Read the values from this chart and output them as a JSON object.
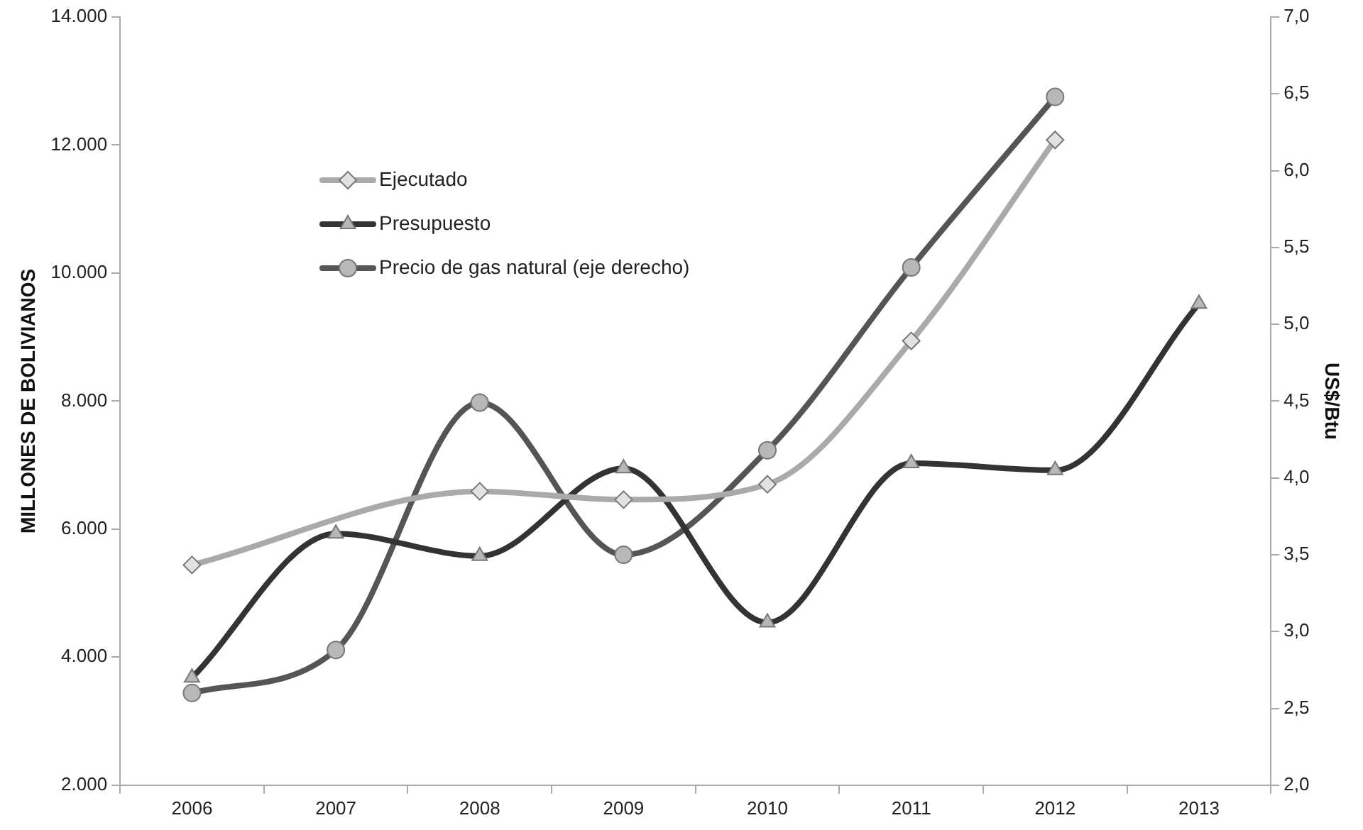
{
  "chart_data": {
    "type": "line",
    "ylabel": "MILLONES DE BOLIVIANOS",
    "y2label": "US$/Btu",
    "categories": [
      "2006",
      "2007",
      "2008",
      "2009",
      "2010",
      "2011",
      "2012",
      "2013"
    ],
    "series": [
      {
        "name": "Ejecutado",
        "color": "#aaaaaa",
        "marker": "diamond",
        "values": [
          5440,
          null,
          6590,
          6460,
          6700,
          8940,
          12080,
          null
        ]
      },
      {
        "name": "Presupuesto",
        "color": "#333333",
        "marker": "triangle",
        "values": [
          3680,
          5930,
          5580,
          6950,
          4540,
          7030,
          6920,
          9520
        ]
      },
      {
        "name": "Precio de gas natural (eje derecho)",
        "color": "#555555",
        "marker": "circle",
        "axis": "y2",
        "values": [
          2.6,
          2.88,
          4.49,
          3.5,
          4.18,
          5.37,
          6.48,
          null
        ]
      }
    ],
    "ylim": [
      2000,
      14000
    ],
    "yticks": [
      {
        "value": 2000,
        "label": "2.000"
      },
      {
        "value": 4000,
        "label": "4.000"
      },
      {
        "value": 6000,
        "label": "6.000"
      },
      {
        "value": 8000,
        "label": "8.000"
      },
      {
        "value": 10000,
        "label": "10.000"
      },
      {
        "value": 12000,
        "label": "12.000"
      },
      {
        "value": 14000,
        "label": "14.000"
      }
    ],
    "y2lim": [
      2,
      7
    ],
    "y2ticks": [
      {
        "value": 2,
        "label": "2,0"
      },
      {
        "value": 2.5,
        "label": "2,5"
      },
      {
        "value": 3,
        "label": "3,0"
      },
      {
        "value": 3.5,
        "label": "3,5"
      },
      {
        "value": 4,
        "label": "4,0"
      },
      {
        "value": 4.5,
        "label": "4,5"
      },
      {
        "value": 5,
        "label": "5,0"
      },
      {
        "value": 5.5,
        "label": "5,5"
      },
      {
        "value": 6,
        "label": "6,0"
      },
      {
        "value": 6.5,
        "label": "6,5"
      },
      {
        "value": 7,
        "label": "7,0"
      }
    ],
    "grid": false,
    "legend": "top left"
  }
}
